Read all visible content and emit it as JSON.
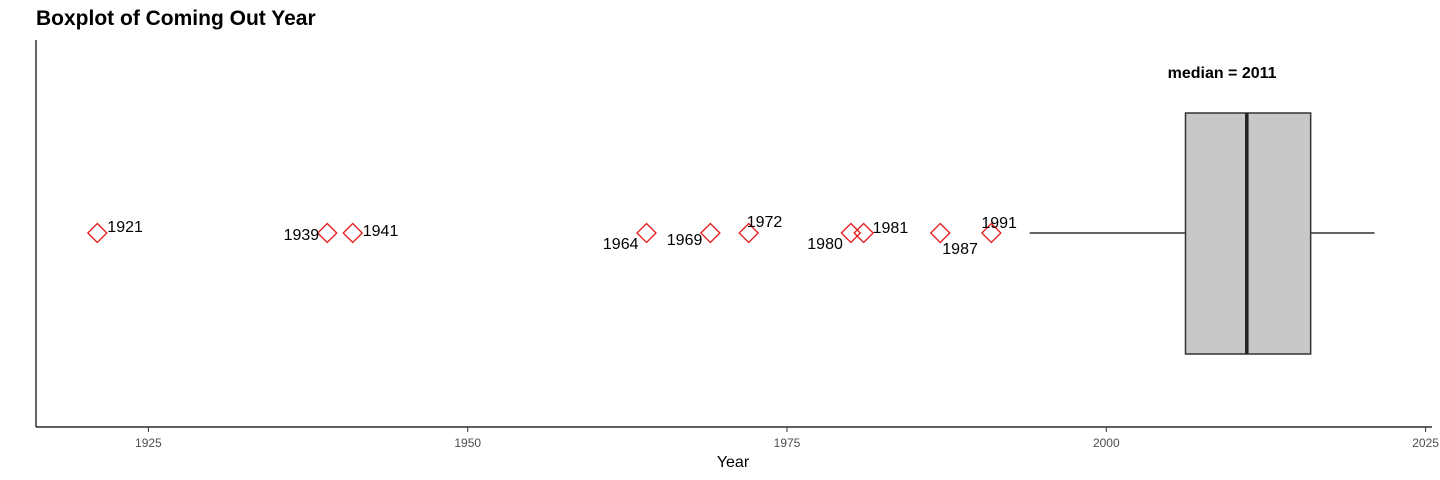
{
  "chart_data": {
    "type": "boxplot",
    "title": "Boxplot of Coming Out Year",
    "xlabel": "Year",
    "ylabel": "",
    "xlim": [
      1916.2,
      2025.5
    ],
    "xticks": [
      1925,
      1950,
      1975,
      2000,
      2025
    ],
    "grid": false,
    "box": {
      "whisker_low": 1994,
      "q1": 2006.2,
      "median": 2011,
      "q3": 2016,
      "whisker_high": 2021,
      "fill": "#c8c8c8",
      "stroke": "#333333"
    },
    "median_annotation": "median =  2011",
    "outliers": [
      {
        "year": 1921,
        "label": "1921"
      },
      {
        "year": 1939,
        "label": "1939"
      },
      {
        "year": 1941,
        "label": "1941"
      },
      {
        "year": 1964,
        "label": "1964"
      },
      {
        "year": 1969,
        "label": "1969"
      },
      {
        "year": 1972,
        "label": "1972"
      },
      {
        "year": 1980,
        "label": "1980"
      },
      {
        "year": 1981,
        "label": "1981"
      },
      {
        "year": 1987,
        "label": "1987"
      },
      {
        "year": 1991,
        "label": "1991"
      }
    ],
    "outlier_color": "#e41a1c"
  }
}
